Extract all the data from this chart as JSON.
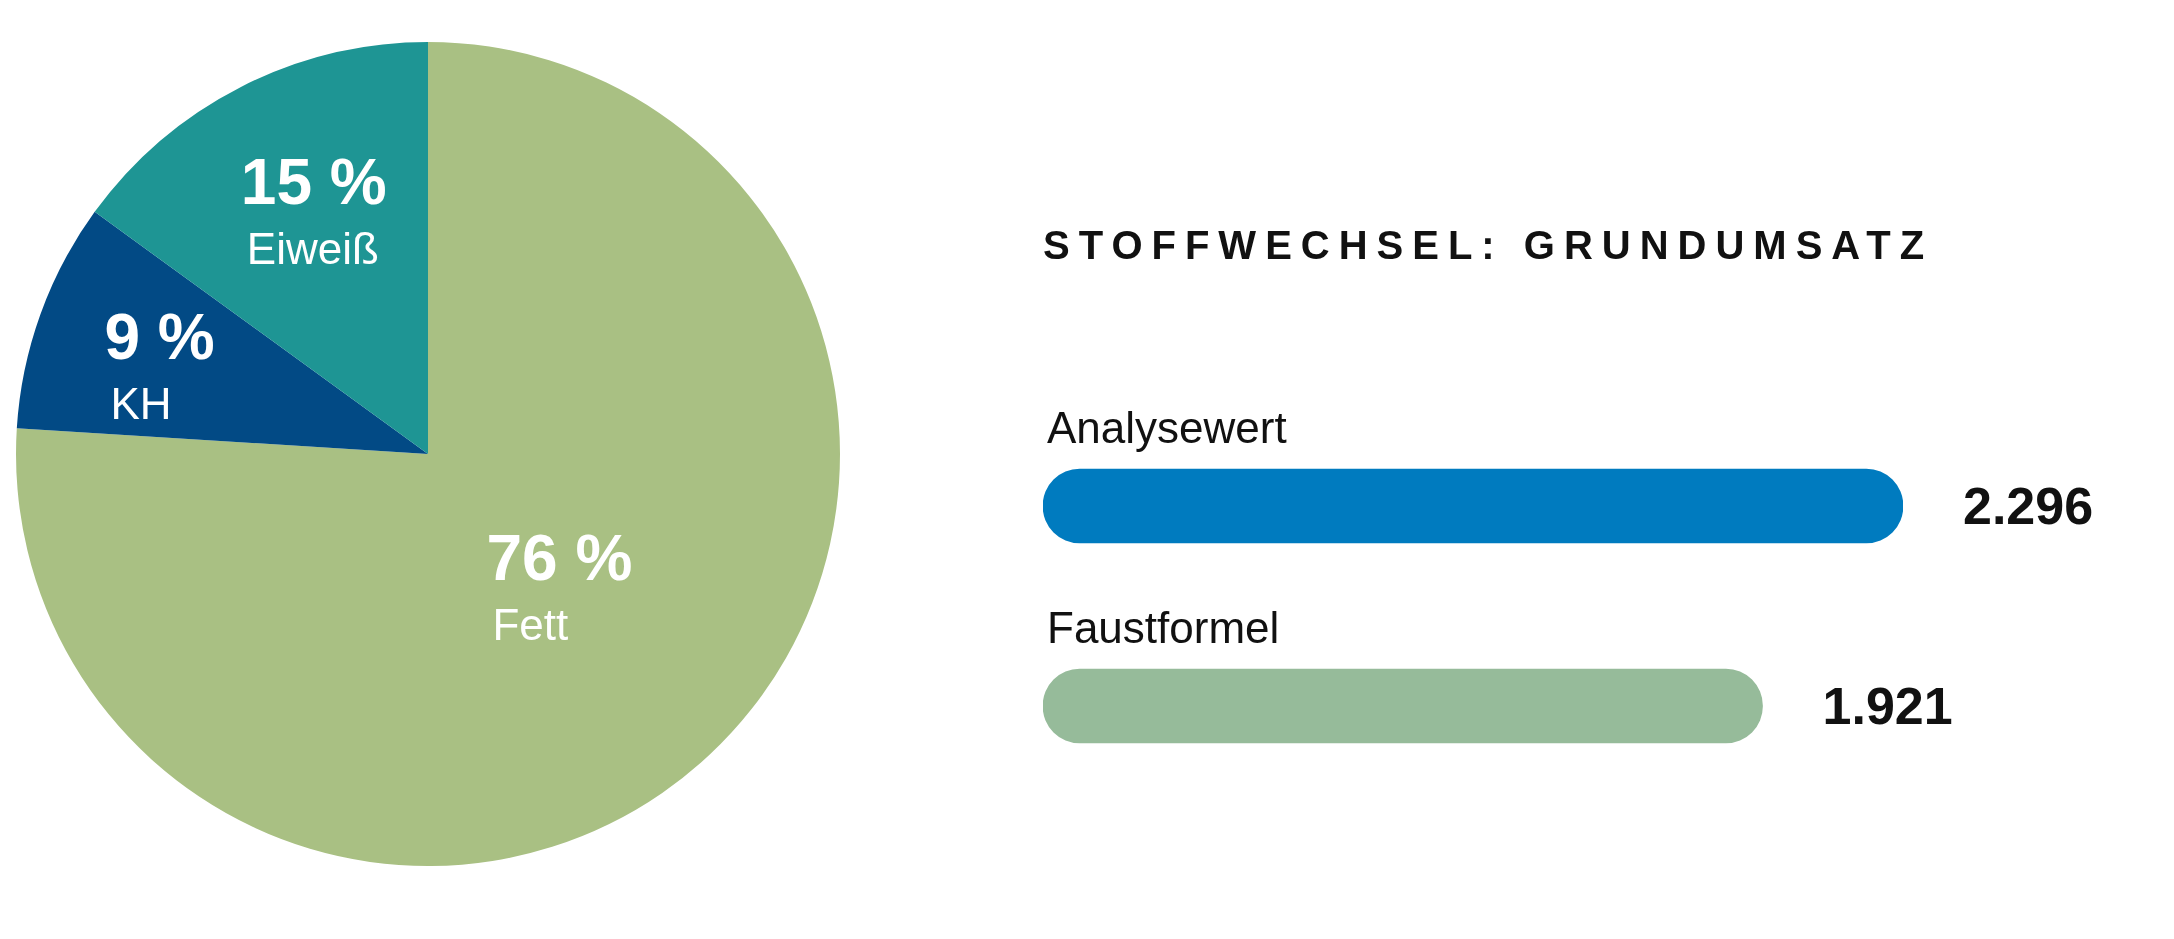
{
  "chart_data": [
    {
      "type": "pie",
      "categories": [
        "Fett",
        "KH",
        "Eiweiß"
      ],
      "values": [
        76,
        9,
        15
      ],
      "colors": [
        "#a9c083",
        "#024a85",
        "#1e9594"
      ],
      "value_labels": [
        "76 %",
        "9 %",
        "15 %"
      ],
      "legend": false
    },
    {
      "type": "bar",
      "orientation": "horizontal",
      "title": "STOFFWECHSEL: GRUNDUMSATZ",
      "categories": [
        "Analysewert",
        "Faustformel"
      ],
      "values": [
        2296,
        1921
      ],
      "colors": [
        "#007bbf",
        "#96bb9a"
      ],
      "value_labels": [
        "2.296",
        "1.921"
      ],
      "legend": false
    }
  ]
}
